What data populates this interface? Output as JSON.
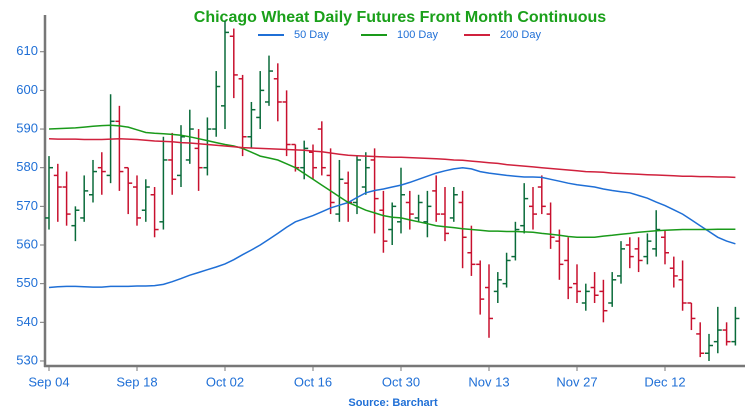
{
  "chart_data": {
    "type": "ohlc",
    "title": "Chicago Wheat Daily Futures Front Month Continuous",
    "source": "Source: Barchart",
    "categories": [
      "Sep 04",
      null,
      null,
      null,
      null,
      null,
      null,
      null,
      null,
      null,
      "Sep 18",
      null,
      null,
      null,
      null,
      null,
      null,
      null,
      null,
      null,
      "Oct 02",
      null,
      null,
      null,
      null,
      null,
      null,
      null,
      null,
      null,
      "Oct 16",
      null,
      null,
      null,
      null,
      null,
      null,
      null,
      null,
      null,
      "Oct 30",
      null,
      null,
      null,
      null,
      null,
      null,
      null,
      null,
      null,
      "Nov 13",
      null,
      null,
      null,
      null,
      null,
      null,
      null,
      null,
      null,
      "Nov 27",
      null,
      null,
      null,
      null,
      null,
      null,
      null,
      null,
      null,
      "Dec 12",
      null,
      null,
      null,
      null,
      null,
      null,
      null,
      null
    ],
    "open": [
      567,
      578,
      575,
      565,
      567,
      573,
      580,
      578,
      592,
      580,
      575,
      569,
      573,
      566,
      582,
      578,
      582,
      585,
      580,
      590,
      596,
      614,
      603,
      588,
      593,
      597,
      603,
      597,
      586,
      580,
      584,
      590,
      578,
      568,
      576,
      571,
      575,
      582,
      569,
      564,
      566,
      571,
      567,
      566,
      574,
      568,
      567,
      571,
      558,
      555,
      549,
      548,
      550,
      557,
      565,
      570,
      575,
      568,
      561,
      556,
      550,
      545,
      549,
      548,
      545,
      552,
      560,
      559,
      557,
      559,
      562,
      554,
      551,
      545,
      537,
      532,
      535,
      538,
      535
    ],
    "high": [
      583,
      581,
      579,
      570,
      578,
      582,
      584,
      599,
      596,
      580,
      578,
      577,
      575,
      588,
      589,
      591,
      595,
      590,
      593,
      605,
      618,
      616,
      604,
      597,
      605,
      609,
      607,
      600,
      586,
      587,
      586,
      592,
      585,
      582,
      579,
      583,
      584,
      585,
      574,
      571,
      580,
      574,
      573,
      574,
      578,
      575,
      575,
      574,
      565,
      556,
      555,
      553,
      558,
      566,
      576,
      575,
      578,
      571,
      564,
      562,
      555,
      550,
      553,
      551,
      553,
      561,
      562,
      562,
      563,
      569,
      564,
      557,
      556,
      545,
      540,
      537,
      544,
      540,
      544
    ],
    "low": [
      564,
      566,
      565,
      561,
      566,
      571,
      573,
      576,
      574,
      568,
      565,
      566,
      562,
      564,
      573,
      575,
      581,
      574,
      578,
      588,
      590,
      598,
      583,
      585,
      590,
      596,
      592,
      583,
      579,
      577,
      577,
      578,
      568,
      566,
      566,
      568,
      573,
      563,
      558,
      560,
      563,
      564,
      566,
      562,
      566,
      561,
      566,
      554,
      552,
      542,
      536,
      545,
      549,
      556,
      563,
      564,
      568,
      559,
      551,
      546,
      545,
      543,
      545,
      540,
      544,
      550,
      554,
      553,
      555,
      557,
      555,
      549,
      543,
      538,
      531,
      530,
      532,
      534,
      534
    ],
    "close": [
      580,
      575,
      568,
      569,
      574,
      579,
      579,
      592,
      579,
      576,
      567,
      575,
      564,
      582,
      577,
      588,
      590,
      580,
      590,
      601,
      615,
      604,
      588,
      595,
      600,
      605,
      597,
      586,
      580,
      585,
      580,
      580,
      571,
      577,
      571,
      582,
      580,
      572,
      561,
      570,
      573,
      568,
      571,
      570,
      568,
      563,
      573,
      562,
      555,
      546,
      541,
      551,
      556,
      564,
      572,
      568,
      570,
      562,
      555,
      549,
      548,
      548,
      547,
      543,
      551,
      559,
      557,
      556,
      561,
      564,
      558,
      552,
      545,
      541,
      532,
      534,
      538,
      535,
      541
    ],
    "up_color": "#0a6b3a",
    "down_color": "#c8102e",
    "lines": [
      {
        "name": "50 Day",
        "color": "#1f6fd6",
        "values": [
          549,
          549.2,
          549.3,
          549.3,
          549.2,
          549.1,
          549.1,
          549.3,
          549.3,
          549.3,
          549.4,
          549.4,
          549.5,
          549.8,
          550.5,
          551.3,
          552.2,
          552.9,
          553.6,
          554.3,
          555.1,
          556.2,
          557.5,
          558.7,
          560,
          561.5,
          563,
          564.6,
          566,
          566.8,
          567.6,
          568.6,
          569.6,
          570.3,
          571,
          572.3,
          573.5,
          574.1,
          574.5,
          575,
          575.5,
          576.2,
          577,
          577.8,
          578.6,
          579.2,
          579.7,
          580,
          579.7,
          579,
          578.6,
          578.3,
          578,
          577.8,
          577.6,
          577.6,
          577.5,
          577,
          576.5,
          576,
          575.6,
          575.3,
          575,
          574.5,
          574.1,
          573.8,
          573.5,
          572.8,
          572.1,
          571.1,
          570.2,
          569.1,
          568,
          566.5,
          565,
          563.5,
          562,
          561,
          560.3
        ]
      },
      {
        "name": "100 Day",
        "color": "#1a9a1a",
        "values": [
          590,
          590.1,
          590.2,
          590.3,
          590.5,
          590.7,
          590.9,
          591,
          590.8,
          590.5,
          589.8,
          589.1,
          588.9,
          588.8,
          588.6,
          588.4,
          588,
          587.5,
          587,
          586.5,
          586,
          585.6,
          585,
          584,
          583,
          582.5,
          582,
          581,
          580,
          578.5,
          577,
          575.5,
          574,
          572.5,
          571,
          570,
          569,
          568.3,
          567.6,
          567.2,
          567,
          566.5,
          566,
          565.5,
          565,
          564.7,
          564.5,
          564.2,
          564,
          563.8,
          563.6,
          563.6,
          563.5,
          563.5,
          563.4,
          563.3,
          563,
          562.8,
          562.5,
          562.2,
          562,
          562,
          562,
          562.3,
          562.5,
          562.8,
          563,
          563.3,
          563.5,
          563.7,
          563.8,
          563.9,
          564,
          564,
          564,
          564,
          564.1,
          564.1,
          564.1
        ]
      },
      {
        "name": "200 Day",
        "color": "#d0213d",
        "values": [
          587.5,
          587.4,
          587.4,
          587.4,
          587.3,
          587.3,
          587.3,
          587.4,
          587.5,
          587.4,
          587.3,
          587.1,
          586.9,
          586.8,
          586.7,
          586.5,
          586.4,
          586.2,
          586,
          585.8,
          585.6,
          585.4,
          585.2,
          585.1,
          585,
          584.9,
          584.8,
          584.7,
          584.6,
          584.5,
          584.3,
          584.1,
          583.8,
          583.5,
          583.2,
          583.1,
          583,
          582.9,
          582.8,
          582.7,
          582.7,
          582.6,
          582.5,
          582.4,
          582.3,
          582.2,
          582,
          581.9,
          581.7,
          581.5,
          581.3,
          581.1,
          580.8,
          580.6,
          580.4,
          580.2,
          580,
          579.8,
          579.6,
          579.4,
          579.2,
          579,
          578.9,
          578.8,
          578.6,
          578.5,
          578.4,
          578.3,
          578.2,
          578.1,
          578,
          577.9,
          577.8,
          577.8,
          577.7,
          577.7,
          577.6,
          577.6,
          577.5
        ]
      }
    ],
    "ylim": [
      528.7,
      619.5
    ],
    "yticks": [
      530,
      540,
      550,
      560,
      570,
      580,
      590,
      600,
      610
    ],
    "legend": "top"
  }
}
